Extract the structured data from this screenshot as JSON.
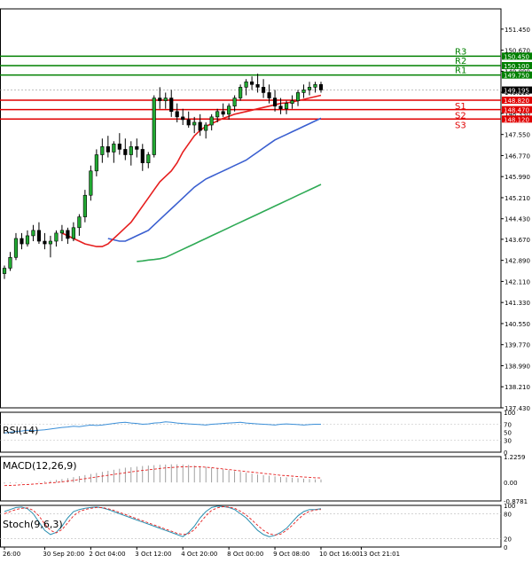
{
  "chart_data": {
    "type": "candlestick",
    "main": {
      "ylim": [
        137.43,
        152.2
      ],
      "y_ticks": [
        "151.450",
        "150.670",
        "149.890",
        "149.110",
        "148.330",
        "147.550",
        "146.770",
        "145.990",
        "145.210",
        "144.430",
        "143.670",
        "142.890",
        "142.110",
        "141.330",
        "140.550",
        "139.770",
        "138.990",
        "138.210",
        "137.430"
      ],
      "x_ticks": [
        {
          "label": "26:00",
          "index": 0
        },
        {
          "label": "30 Sep 20:00",
          "index": 7
        },
        {
          "label": "2 Oct 04:00",
          "index": 15
        },
        {
          "label": "3 Oct 12:00",
          "index": 23
        },
        {
          "label": "4 Oct 20:00",
          "index": 31
        },
        {
          "label": "8 Oct 00:00",
          "index": 39
        },
        {
          "label": "9 Oct 08:00",
          "index": 47
        },
        {
          "label": "10 Oct 16:00",
          "index": 55
        },
        {
          "label": "13 Oct 21:01",
          "index": 62
        }
      ],
      "levels": [
        {
          "name": "R3",
          "value": 150.45,
          "price_label": "150.450",
          "color": "#008000"
        },
        {
          "name": "R2",
          "value": 150.1,
          "price_label": "150.100",
          "color": "#008000"
        },
        {
          "name": "R1",
          "value": 149.75,
          "price_label": "149.750",
          "color": "#008000"
        },
        {
          "name": "S1",
          "value": 148.82,
          "price_label": "148.820",
          "color": "#e00000"
        },
        {
          "name": "S2",
          "value": 148.47,
          "price_label": "148.470",
          "color": "#e00000"
        },
        {
          "name": "S3",
          "value": 148.12,
          "price_label": "148.120",
          "color": "#e00000"
        }
      ],
      "current_price": {
        "value": 149.195,
        "label": "149.195"
      },
      "candles": [
        [
          142.4,
          142.7,
          142.2,
          142.6
        ],
        [
          142.6,
          143.2,
          142.5,
          143.0
        ],
        [
          143.0,
          143.9,
          142.9,
          143.7
        ],
        [
          143.7,
          143.9,
          143.3,
          143.5
        ],
        [
          143.5,
          144.0,
          143.4,
          143.8
        ],
        [
          143.8,
          144.2,
          143.6,
          144.0
        ],
        [
          144.0,
          144.3,
          143.5,
          143.6
        ],
        [
          143.6,
          143.9,
          143.3,
          143.5
        ],
        [
          143.5,
          143.8,
          143.0,
          143.6
        ],
        [
          143.6,
          144.0,
          143.4,
          143.9
        ],
        [
          143.9,
          144.2,
          143.6,
          144.0
        ],
        [
          144.0,
          144.1,
          143.5,
          143.7
        ],
        [
          143.7,
          144.3,
          143.6,
          144.1
        ],
        [
          144.1,
          144.6,
          143.8,
          144.5
        ],
        [
          144.5,
          145.5,
          144.3,
          145.3
        ],
        [
          145.3,
          146.4,
          145.1,
          146.2
        ],
        [
          146.2,
          147.0,
          146.0,
          146.8
        ],
        [
          146.8,
          147.4,
          146.5,
          147.1
        ],
        [
          147.1,
          147.5,
          146.7,
          146.9
        ],
        [
          146.9,
          147.3,
          146.5,
          147.2
        ],
        [
          147.2,
          147.6,
          146.8,
          147.0
        ],
        [
          147.0,
          147.4,
          146.6,
          146.8
        ],
        [
          146.8,
          147.3,
          146.4,
          147.1
        ],
        [
          147.1,
          147.4,
          146.7,
          147.0
        ],
        [
          147.0,
          147.2,
          146.2,
          146.5
        ],
        [
          146.5,
          146.9,
          146.3,
          146.8
        ],
        [
          146.8,
          149.0,
          146.7,
          148.9
        ],
        [
          148.9,
          149.3,
          148.5,
          148.8
        ],
        [
          148.8,
          149.1,
          148.5,
          148.9
        ],
        [
          148.9,
          149.2,
          148.2,
          148.4
        ],
        [
          148.4,
          148.7,
          148.0,
          148.2
        ],
        [
          148.2,
          148.5,
          147.9,
          148.1
        ],
        [
          148.1,
          148.4,
          147.8,
          147.9
        ],
        [
          147.9,
          148.2,
          147.6,
          148.0
        ],
        [
          148.0,
          148.3,
          147.5,
          147.7
        ],
        [
          147.7,
          148.0,
          147.4,
          147.9
        ],
        [
          147.9,
          148.3,
          147.7,
          148.2
        ],
        [
          148.2,
          148.5,
          148.0,
          148.4
        ],
        [
          148.4,
          148.7,
          148.2,
          148.3
        ],
        [
          148.3,
          148.7,
          148.1,
          148.6
        ],
        [
          148.6,
          149.0,
          148.4,
          148.9
        ],
        [
          148.9,
          149.4,
          148.8,
          149.3
        ],
        [
          149.3,
          149.6,
          149.0,
          149.5
        ],
        [
          149.5,
          149.7,
          149.2,
          149.4
        ],
        [
          149.4,
          149.8,
          149.1,
          149.3
        ],
        [
          149.3,
          149.6,
          148.9,
          149.1
        ],
        [
          149.1,
          149.4,
          148.7,
          148.9
        ],
        [
          148.9,
          149.2,
          148.4,
          148.6
        ],
        [
          148.6,
          148.9,
          148.3,
          148.5
        ],
        [
          148.5,
          148.8,
          148.3,
          148.7
        ],
        [
          148.7,
          149.0,
          148.5,
          148.8
        ],
        [
          148.8,
          149.2,
          148.6,
          149.1
        ],
        [
          149.1,
          149.4,
          148.9,
          149.2
        ],
        [
          149.2,
          149.5,
          149.0,
          149.3
        ],
        [
          149.3,
          149.5,
          149.1,
          149.4
        ],
        [
          149.4,
          149.5,
          149.1,
          149.2
        ]
      ],
      "ma_red": [
        143.9,
        143.8,
        143.7,
        143.6,
        143.5,
        143.45,
        143.4,
        143.4,
        143.5,
        143.7,
        143.9,
        144.1,
        144.3,
        144.6,
        144.9,
        145.2,
        145.5,
        145.8,
        146.0,
        146.2,
        146.5,
        146.9,
        147.2,
        147.5,
        147.7,
        147.85,
        147.95,
        148.05,
        148.15,
        148.22,
        148.3,
        148.35,
        148.4,
        148.45,
        148.5,
        148.55,
        148.6,
        148.65,
        148.7,
        148.72,
        148.75,
        148.8,
        148.85,
        148.9,
        148.95,
        149.0
      ],
      "ma_blue": [
        143.7,
        143.65,
        143.6,
        143.6,
        143.7,
        143.8,
        143.9,
        144.0,
        144.2,
        144.4,
        144.6,
        144.8,
        145.0,
        145.2,
        145.4,
        145.6,
        145.75,
        145.9,
        146.0,
        146.1,
        146.2,
        146.3,
        146.4,
        146.5,
        146.6,
        146.75,
        146.9,
        147.05,
        147.2,
        147.35,
        147.45,
        147.55,
        147.65,
        147.75,
        147.85,
        147.95,
        148.05,
        148.15
      ],
      "ma_green": [
        142.85,
        142.87,
        142.9,
        142.92,
        142.95,
        143.0,
        143.1,
        143.2,
        143.3,
        143.4,
        143.5,
        143.6,
        143.7,
        143.8,
        143.9,
        144.0,
        144.1,
        144.2,
        144.3,
        144.4,
        144.5,
        144.6,
        144.7,
        144.8,
        144.9,
        145.0,
        145.1,
        145.2,
        145.3,
        145.4,
        145.5,
        145.6,
        145.7
      ]
    },
    "rsi": {
      "label": "RSI(14)",
      "ylim": [
        0,
        100
      ],
      "y_ticks": [
        "100",
        "70",
        "50",
        "30",
        "0"
      ],
      "values": [
        48,
        50,
        52,
        53,
        55,
        54,
        55,
        56,
        58,
        60,
        62,
        63,
        65,
        64,
        66,
        68,
        67,
        68,
        70,
        72,
        74,
        75,
        73,
        72,
        70,
        71,
        73,
        74,
        76,
        75,
        73,
        72,
        71,
        70,
        69,
        68,
        70,
        71,
        72,
        73,
        74,
        75,
        73,
        72,
        71,
        70,
        69,
        68,
        70,
        71,
        70,
        69,
        68,
        69,
        70,
        70
      ]
    },
    "macd": {
      "label": "MACD(12,26,9)",
      "ylim": [
        -0.8781,
        1.2259
      ],
      "y_ticks": [
        "1.2259",
        "0.00",
        "-0.8781"
      ],
      "hist": [
        -0.05,
        -0.04,
        -0.03,
        -0.02,
        -0.01,
        0.0,
        0.02,
        0.05,
        0.08,
        0.12,
        0.16,
        0.2,
        0.25,
        0.3,
        0.35,
        0.4,
        0.45,
        0.5,
        0.55,
        0.6,
        0.65,
        0.7,
        0.72,
        0.75,
        0.78,
        0.8,
        0.82,
        0.84,
        0.85,
        0.86,
        0.86,
        0.85,
        0.83,
        0.8,
        0.77,
        0.74,
        0.7,
        0.66,
        0.62,
        0.58,
        0.54,
        0.5,
        0.46,
        0.42,
        0.38,
        0.35,
        0.32,
        0.29,
        0.26,
        0.24,
        0.22,
        0.2,
        0.18,
        0.16,
        0.15,
        0.14
      ],
      "signal": [
        -0.15,
        -0.14,
        -0.13,
        -0.11,
        -0.1,
        -0.08,
        -0.06,
        -0.04,
        -0.02,
        0.0,
        0.03,
        0.06,
        0.1,
        0.14,
        0.18,
        0.22,
        0.26,
        0.3,
        0.34,
        0.38,
        0.42,
        0.46,
        0.5,
        0.54,
        0.57,
        0.6,
        0.63,
        0.66,
        0.69,
        0.71,
        0.73,
        0.74,
        0.75,
        0.75,
        0.74,
        0.72,
        0.7,
        0.67,
        0.64,
        0.61,
        0.58,
        0.55,
        0.52,
        0.49,
        0.46,
        0.43,
        0.4,
        0.37,
        0.34,
        0.32,
        0.3,
        0.28,
        0.26,
        0.24,
        0.22,
        0.21
      ]
    },
    "stoch": {
      "label": "Stoch(9,6,3)",
      "ylim": [
        0,
        100
      ],
      "y_ticks": [
        "100",
        "80",
        "20",
        "0"
      ],
      "main": [
        85,
        90,
        95,
        96,
        92,
        80,
        60,
        40,
        30,
        35,
        50,
        70,
        85,
        90,
        93,
        95,
        96,
        94,
        90,
        85,
        80,
        75,
        70,
        65,
        60,
        55,
        50,
        45,
        40,
        35,
        30,
        25,
        35,
        50,
        70,
        85,
        95,
        98,
        97,
        95,
        90,
        80,
        70,
        55,
        40,
        30,
        25,
        28,
        35,
        45,
        60,
        75,
        85,
        90,
        90,
        92
      ],
      "signal": [
        80,
        85,
        90,
        93,
        94,
        88,
        75,
        55,
        40,
        34,
        42,
        58,
        75,
        85,
        90,
        93,
        95,
        95,
        92,
        88,
        83,
        78,
        73,
        68,
        63,
        58,
        53,
        48,
        43,
        38,
        33,
        30,
        32,
        42,
        58,
        75,
        88,
        94,
        97,
        96,
        93,
        86,
        77,
        65,
        52,
        40,
        32,
        29,
        31,
        40,
        52,
        66,
        78,
        86,
        89,
        90
      ]
    }
  }
}
